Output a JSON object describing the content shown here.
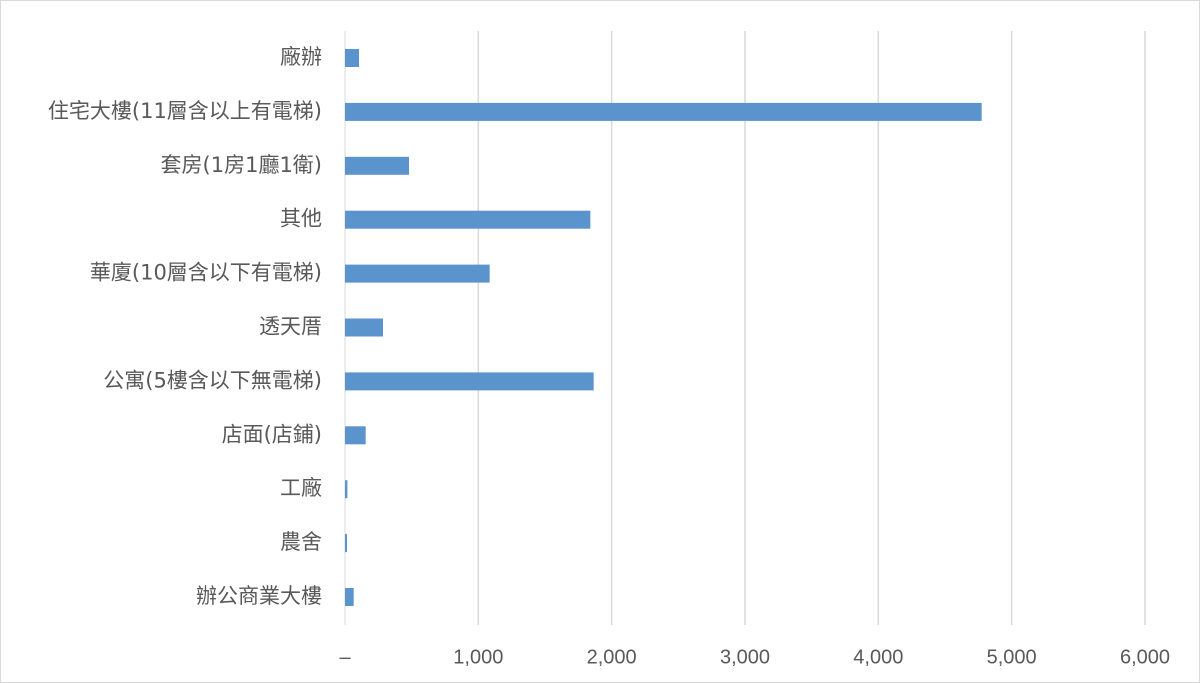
{
  "chart_data": {
    "type": "bar",
    "orientation": "horizontal",
    "categories": [
      "廠辦",
      "住宅大樓(11層含以上有電梯)",
      "套房(1房1廳1衛)",
      "其他",
      "華廈(10層含以下有電梯)",
      "透天厝",
      "公寓(5樓含以下無電梯)",
      "店面(店鋪)",
      "工廠",
      "農舍",
      "辦公商業大樓"
    ],
    "values": [
      105,
      4775,
      480,
      1840,
      1085,
      285,
      1865,
      155,
      18,
      15,
      65
    ],
    "xlim": [
      0,
      6000
    ],
    "x_ticks": [
      0,
      1000,
      2000,
      3000,
      4000,
      5000,
      6000
    ],
    "x_tick_labels": [
      "–",
      "1,000",
      "2,000",
      "3,000",
      "4,000",
      "5,000",
      "6,000"
    ],
    "title": "",
    "xlabel": "",
    "ylabel": "",
    "grid": "vertical",
    "legend": "none",
    "bar_color": "#5b93cc",
    "grid_color": "#d9d9d9",
    "text_color": "#595959"
  }
}
